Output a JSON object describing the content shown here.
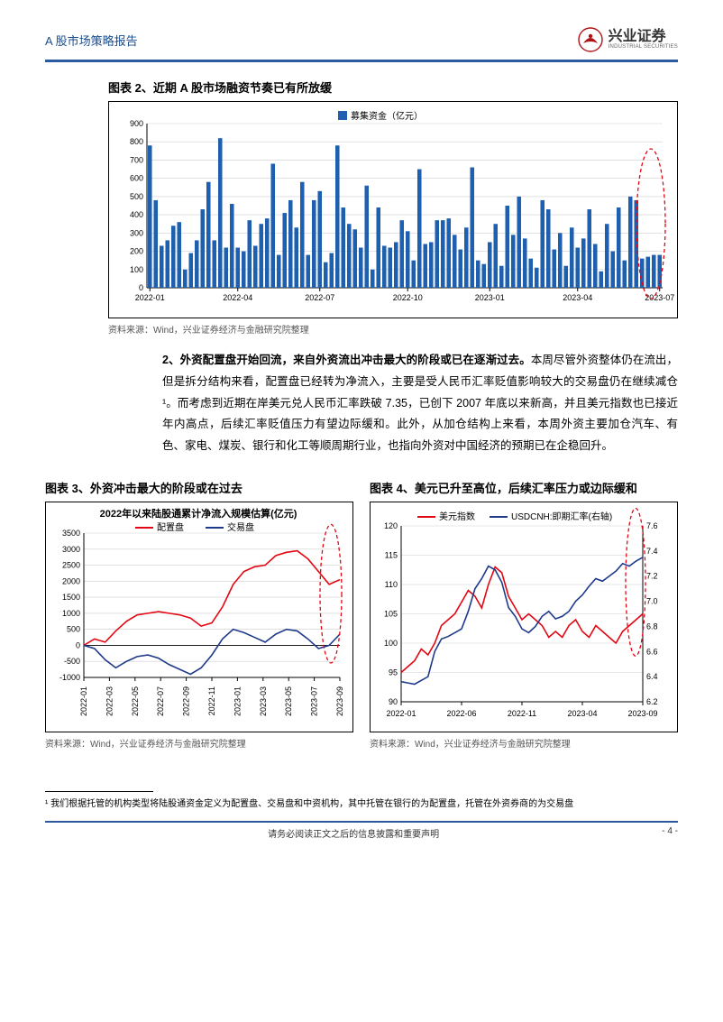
{
  "header": {
    "doc_title": "A 股市场策略报告",
    "brand_cn": "兴业证券",
    "brand_en": "INDUSTRIAL SECURITIES"
  },
  "chart2": {
    "title": "图表 2、近期 A 股市场融资节奏已有所放缓",
    "legend": "募集资金（亿元）",
    "source": "资料来源：Wind，兴业证券经济与金融研究院整理",
    "type": "bar",
    "y": {
      "min": 0,
      "max": 900,
      "step": 100
    },
    "x_labels": [
      "2022-01",
      "2022-04",
      "2022-07",
      "2022-10",
      "2023-01",
      "2023-04",
      "2023-07"
    ],
    "bar_color": "#1f5fb0",
    "grid_color": "#cfcfcf",
    "highlight_color": "#e30613",
    "highlight_start": 84,
    "highlight_end": 87,
    "values": [
      780,
      480,
      230,
      260,
      340,
      360,
      100,
      190,
      260,
      430,
      580,
      260,
      820,
      220,
      460,
      220,
      200,
      370,
      230,
      350,
      380,
      680,
      180,
      410,
      480,
      330,
      580,
      180,
      480,
      530,
      140,
      190,
      780,
      440,
      350,
      320,
      220,
      560,
      100,
      440,
      230,
      220,
      250,
      370,
      310,
      150,
      650,
      240,
      250,
      370,
      370,
      380,
      290,
      210,
      330,
      660,
      150,
      130,
      250,
      350,
      120,
      450,
      290,
      500,
      270,
      160,
      110,
      480,
      430,
      210,
      300,
      120,
      330,
      220,
      270,
      430,
      240,
      90,
      350,
      200,
      440,
      150,
      500,
      480,
      160,
      170,
      180,
      180
    ]
  },
  "para2": {
    "lead": "2、外资配置盘开始回流，来自外资流出冲击最大的阶段或已在逐渐过去。",
    "rest": "本周尽管外资整体仍在流出，但是拆分结构来看，配置盘已经转为净流入，主要是受人民币汇率贬值影响较大的交易盘仍在继续减仓¹。而考虑到近期在岸美元兑人民币汇率跌破 7.35，已创下 2007 年底以来新高，并且美元指数也已接近年内高点，后续汇率贬值压力有望边际缓和。此外，从加仓结构上来看，本周外资主要加仓汽车、有色、家电、煤炭、银行和化工等顺周期行业，也指向外资对中国经济的预期已在企稳回升。"
  },
  "chart3": {
    "title": "图表 3、外资冲击最大的阶段或在过去",
    "inner_title": "2022年以来陆股通累计净流入规模估算(亿元)",
    "legend1": "配置盘",
    "legend2": "交易盘",
    "source": "资料来源：Wind，兴业证券经济与金融研究院整理",
    "type": "line",
    "y": {
      "min": -1000,
      "max": 3500,
      "step": 500
    },
    "x_labels": [
      "2022-01",
      "2022-03",
      "2022-05",
      "2022-07",
      "2022-09",
      "2022-11",
      "2023-01",
      "2023-03",
      "2023-05",
      "2023-07",
      "2023-09"
    ],
    "series1_color": "#e30613",
    "series2_color": "#1f3a8a",
    "grid_color": "#cfcfcf",
    "highlight_color": "#e30613",
    "series1": [
      0,
      200,
      100,
      450,
      750,
      950,
      1000,
      1050,
      1000,
      950,
      850,
      600,
      700,
      1200,
      1900,
      2300,
      2450,
      2500,
      2800,
      2900,
      2950,
      2700,
      2300,
      1900,
      2050
    ],
    "series2": [
      0,
      -100,
      -450,
      -700,
      -500,
      -350,
      -300,
      -400,
      -600,
      -750,
      -900,
      -700,
      -300,
      200,
      500,
      400,
      250,
      100,
      350,
      500,
      450,
      200,
      -100,
      0,
      350
    ]
  },
  "chart4": {
    "title": "图表 4、美元已升至高位，后续汇率压力或边际缓和",
    "legend1": "美元指数",
    "legend2": "USDCNH:即期汇率(右轴)",
    "source": "资料来源：Wind，兴业证券经济与金融研究院整理",
    "type": "line",
    "y_left": {
      "min": 90,
      "max": 120,
      "step": 5
    },
    "y_right": {
      "min": 6.2,
      "max": 7.6,
      "step": 0.2
    },
    "x_labels": [
      "2022-01",
      "2022-06",
      "2022-11",
      "2023-04",
      "2023-09"
    ],
    "series1_color": "#e30613",
    "series2_color": "#1f3a8a",
    "grid_color": "#cfcfcf",
    "highlight_color": "#e30613",
    "series1": [
      95,
      96,
      97,
      99,
      98,
      100,
      103,
      104,
      105,
      107,
      109,
      108,
      106,
      110,
      113,
      112,
      108,
      106,
      104,
      105,
      104,
      103,
      101,
      102,
      101,
      103,
      104,
      102,
      101,
      103,
      102,
      101,
      100,
      102,
      103,
      104,
      105
    ],
    "series2": [
      6.36,
      6.35,
      6.34,
      6.37,
      6.4,
      6.6,
      6.7,
      6.72,
      6.75,
      6.78,
      6.92,
      7.1,
      7.18,
      7.28,
      7.25,
      7.15,
      6.95,
      6.88,
      6.78,
      6.75,
      6.8,
      6.88,
      6.92,
      6.86,
      6.88,
      6.92,
      7.0,
      7.05,
      7.12,
      7.18,
      7.16,
      7.2,
      7.24,
      7.3,
      7.28,
      7.32,
      7.35
    ]
  },
  "footnote": "¹ 我们根据托管的机构类型将陆股通资金定义为配置盘、交易盘和中资机构，其中托管在银行的为配置盘，托管在外资券商的为交易盘",
  "footer": {
    "disclaimer": "请务必阅读正文之后的信息披露和重要声明",
    "page": "- 4 -"
  }
}
